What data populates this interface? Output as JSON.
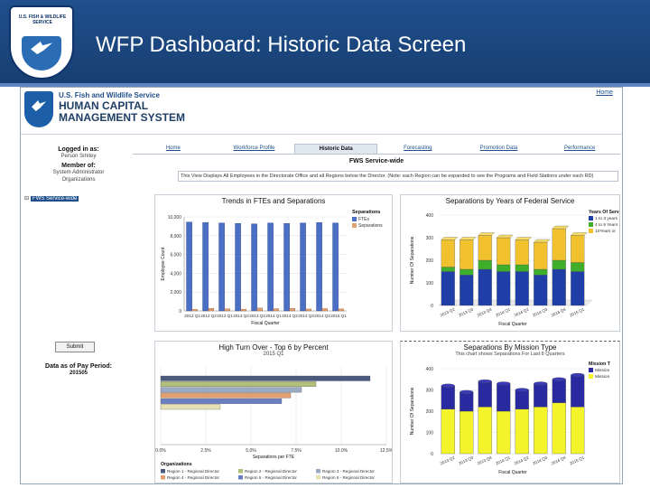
{
  "slide": {
    "title": "WFP Dashboard: Historic Data Screen",
    "logo_text": "U.S. FISH & WILDLIFE SERVICE"
  },
  "app": {
    "agency": "U.S. Fish and Wildlife Service",
    "name_line1": "HUMAN CAPITAL",
    "name_line2": "MANAGEMENT SYSTEM",
    "home_link": "Home"
  },
  "left_panel": {
    "logged_in_label": "Logged in as:",
    "logged_in_value": "Person Smitey",
    "member_label": "Member of:",
    "member_value": "System Administrator",
    "orgs_label": "Organizations",
    "org_item": "FWS Service-wide",
    "submit": "Submit",
    "data_as_of_label": "Data as of Pay Period:",
    "data_as_of_value": "201505"
  },
  "tabs": [
    {
      "label": "Home"
    },
    {
      "label": "Workforce Profile"
    },
    {
      "label": "Historic Data"
    },
    {
      "label": "Forecasting"
    },
    {
      "label": "Promotion Data"
    },
    {
      "label": "Performance"
    }
  ],
  "view": {
    "title": "FWS Service-wide",
    "description": "This View Displays All Employees in the Directorate Office and all Regions below the Director. (Note: each Region can be expanded to see the Programs and Field Stations under each RD)"
  },
  "colors": {
    "fte_bar": "#4a6fc4",
    "separation_bar": "#e0a070",
    "under3": "#1f3fa6",
    "4to9": "#3fae2a",
    "over10": "#f2c12e",
    "mission_a": "#2a2aa0",
    "mission_b": "#f4f42a"
  },
  "chart_data": [
    {
      "type": "bar",
      "title": "Trends in FTEs and Separations",
      "xlabel": "Fiscal Quarter",
      "ylabel": "Employee Count",
      "ylim": [
        0,
        10000
      ],
      "yticks": [
        "10,000",
        "8,000",
        "6,000",
        "4,000",
        "2,000",
        "0"
      ],
      "categories": [
        "2012 Q1",
        "2012 Q2",
        "2013 Q1",
        "2013 Q2",
        "2013 Q4",
        "2014 Q1",
        "2014 Q2",
        "2014 Q3",
        "2014 Q4",
        "2015 Q1"
      ],
      "legend_title": "Separations",
      "series": [
        {
          "name": "FTEs",
          "values": [
            9450,
            9400,
            9350,
            9300,
            9250,
            9350,
            9300,
            9350,
            9400,
            9350
          ]
        },
        {
          "name": "Separations",
          "values": [
            150,
            260,
            220,
            180,
            300,
            230,
            260,
            200,
            240,
            210
          ]
        }
      ]
    },
    {
      "type": "bar",
      "title": "Separations by Years of Federal Service",
      "xlabel": "Fiscal Quarter",
      "ylabel": "Number Of Separations",
      "ylim": [
        0,
        400
      ],
      "yticks": [
        "400",
        "300",
        "200",
        "100",
        "0"
      ],
      "categories": [
        "2013 Q2",
        "2013 Q3",
        "2013 Q4",
        "2014 Q1",
        "2014 Q2",
        "2014 Q3",
        "2014 Q4",
        "2015 Q1"
      ],
      "legend_title": "Years Of Serv",
      "series": [
        {
          "name": "1 to 3 years",
          "values": [
            150,
            135,
            160,
            150,
            150,
            135,
            160,
            150
          ]
        },
        {
          "name": "4 to 9 Years",
          "values": [
            20,
            25,
            40,
            30,
            30,
            25,
            40,
            40
          ]
        },
        {
          "name": "10Years or",
          "values": [
            120,
            130,
            110,
            120,
            110,
            120,
            140,
            120
          ]
        }
      ]
    },
    {
      "type": "bar",
      "orientation": "horizontal",
      "title": "High Turn Over - Top 6 by Percent",
      "subtitle": "2015 Q1",
      "xlabel": "Separations per FTE",
      "xlim": [
        0,
        12.5
      ],
      "xticks": [
        "0.0%",
        "2.5%",
        "5.0%",
        "7.5%",
        "10.0%",
        "12.5%"
      ],
      "legend_title": "Organizations",
      "series": [
        {
          "name": "Region 1 - Regional Director",
          "value": 11.6,
          "color": "#4a5a7e"
        },
        {
          "name": "Region 2 - Regional Director",
          "value": 8.6,
          "color": "#b0c07a"
        },
        {
          "name": "Region 3 - Regional Director",
          "value": 7.8,
          "color": "#9aa9c4"
        },
        {
          "name": "Region 4 - Regional Director",
          "value": 7.2,
          "color": "#e2a070"
        },
        {
          "name": "Region 5 - Regional Director",
          "value": 6.7,
          "color": "#6a7ec2"
        },
        {
          "name": "Region 6 - Regional Director",
          "value": 3.3,
          "color": "#e6e0b2"
        }
      ]
    },
    {
      "type": "bar",
      "title": "Separations By Mission Type",
      "subtitle": "This chart shows Separations For Last 8 Quarters",
      "xlabel": "Fiscal Quarter",
      "ylabel": "Number Of Separations",
      "ylim": [
        0,
        400
      ],
      "yticks": [
        "400",
        "300",
        "200",
        "100",
        "0"
      ],
      "categories": [
        "2013 Q2",
        "2013 Q3",
        "2013 Q4",
        "2014 Q1",
        "2014 Q2",
        "2014 Q3",
        "2014 Q4",
        "2015 Q1"
      ],
      "legend_title": "Mission T",
      "series": [
        {
          "name": "Mission",
          "values": [
            210,
            200,
            220,
            200,
            210,
            220,
            240,
            220
          ]
        },
        {
          "name": "Mission",
          "values": [
            110,
            90,
            120,
            130,
            90,
            110,
            110,
            150
          ]
        }
      ]
    }
  ]
}
